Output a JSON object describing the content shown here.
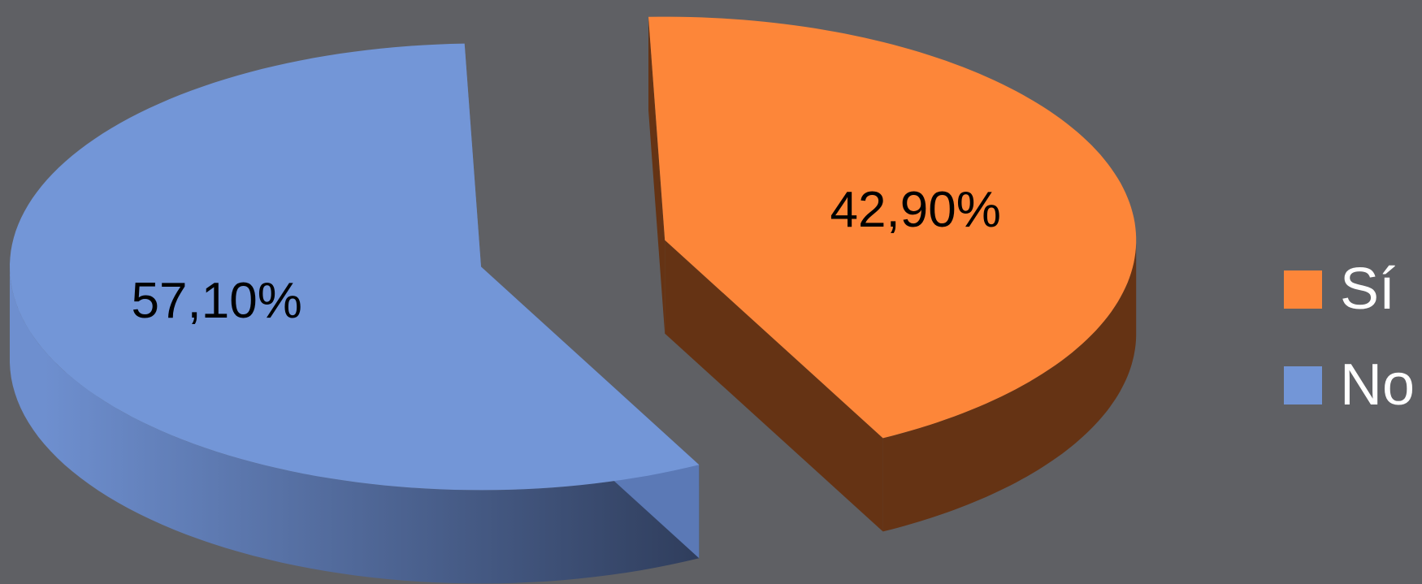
{
  "chart_data": {
    "type": "pie",
    "variant": "3d-exploded",
    "title": "",
    "legend_position": "right",
    "categories": [
      "Sí",
      "No"
    ],
    "values": [
      42.9,
      57.1
    ],
    "labels": [
      "42,90%",
      "57,10%"
    ],
    "colors": [
      "#fd8639",
      "#7396d7"
    ],
    "side_colors": [
      "#653314",
      "#4a6499"
    ]
  }
}
